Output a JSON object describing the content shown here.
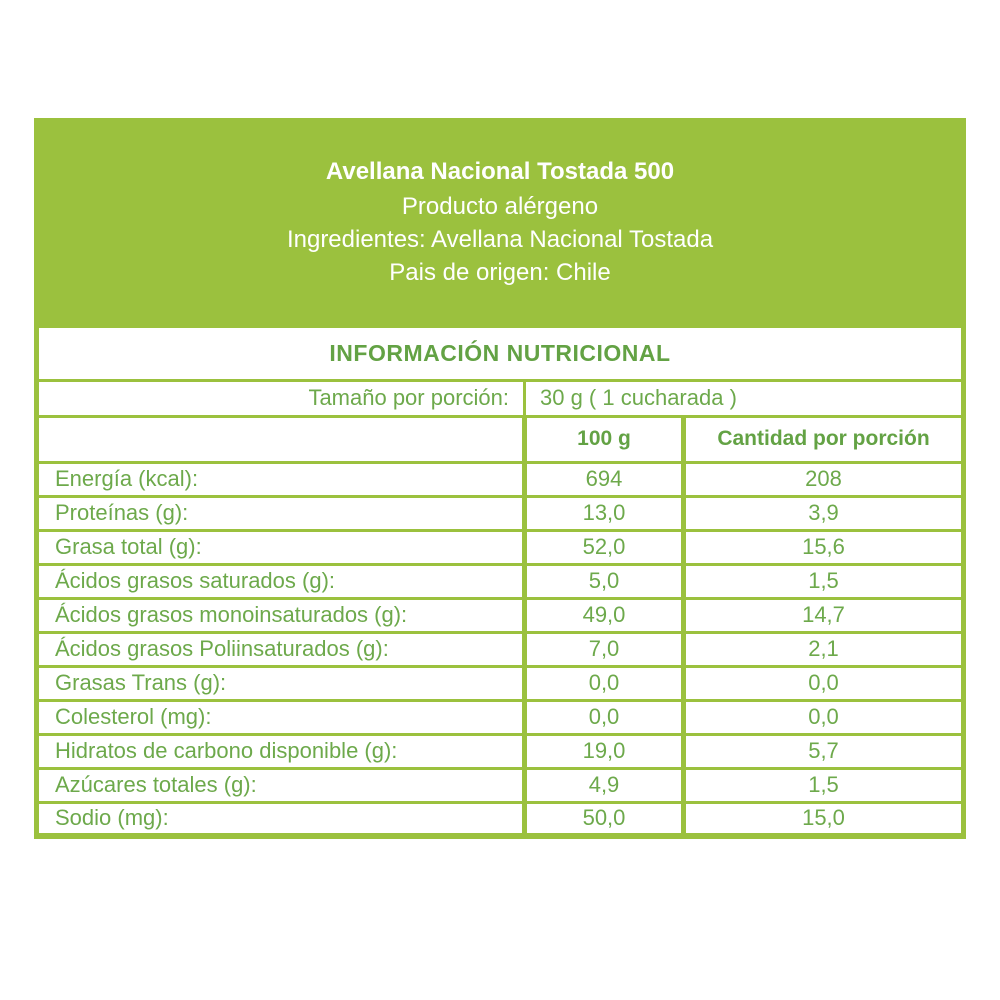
{
  "colors": {
    "green": "#9bc13e",
    "heading_green": "#63a244",
    "body_green": "#6da94b",
    "header_text": "#ffffff"
  },
  "header": {
    "title": "Avellana Nacional Tostada 500",
    "allergen_line": "Producto alérgeno",
    "ingredients_line": "Ingredientes: Avellana Nacional Tostada",
    "origin_line": "Pais de origen: Chile"
  },
  "table": {
    "title": "INFORMACIÓN NUTRICIONAL",
    "serving_label": "Tamaño por porción:",
    "serving_value": "30 g ( 1 cucharada )",
    "col_header_100g": "100 g",
    "col_header_portion": "Cantidad por porción",
    "rows": [
      {
        "label": "Energía (kcal):",
        "per_100": "694",
        "per_serving": "208"
      },
      {
        "label": "Proteínas (g):",
        "per_100": "13,0",
        "per_serving": "3,9"
      },
      {
        "label": "Grasa total (g):",
        "per_100": "52,0",
        "per_serving": "15,6"
      },
      {
        "label": "Ácidos grasos saturados (g):",
        "per_100": "5,0",
        "per_serving": "1,5"
      },
      {
        "label": "Ácidos grasos monoinsaturados (g):",
        "per_100": "49,0",
        "per_serving": "14,7"
      },
      {
        "label": "Ácidos grasos Poliinsaturados (g):",
        "per_100": "7,0",
        "per_serving": "2,1"
      },
      {
        "label": "Grasas Trans (g):",
        "per_100": "0,0",
        "per_serving": "0,0"
      },
      {
        "label": "Colesterol (mg):",
        "per_100": "0,0",
        "per_serving": "0,0"
      },
      {
        "label": "Hidratos de carbono disponible (g):",
        "per_100": "19,0",
        "per_serving": "5,7"
      },
      {
        "label": "Azúcares totales (g):",
        "per_100": "4,9",
        "per_serving": "1,5"
      },
      {
        "label": "Sodio (mg):",
        "per_100": "50,0",
        "per_serving": "15,0"
      }
    ]
  }
}
